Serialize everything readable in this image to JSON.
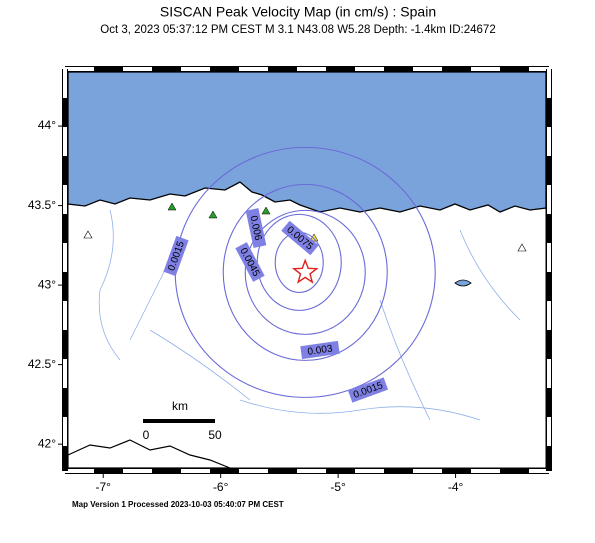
{
  "map": {
    "title": "SISCAN Peak Velocity Map (in cm/s) : Spain",
    "subtitle": "Oct  3, 2023 05:37:12 PM CEST   M 3.1   N43.08 W5.28   Depth: -1.4km   ID:24672",
    "footer": "Map Version 1 Processed 2023-10-03 05:40:07 PM CEST",
    "xlim": [
      -7.3,
      -3.23
    ],
    "ylim": [
      41.85,
      44.34
    ],
    "xticks": [
      {
        "value": -7,
        "label": "-7°"
      },
      {
        "value": -6,
        "label": "-6°"
      },
      {
        "value": -5,
        "label": "-5°"
      },
      {
        "value": -4,
        "label": "-4°"
      }
    ],
    "yticks": [
      {
        "value": 42,
        "label": "42°"
      },
      {
        "value": 42.5,
        "label": "42.5°"
      },
      {
        "value": 43,
        "label": "43°"
      },
      {
        "value": 43.5,
        "label": "43.5°"
      },
      {
        "value": 44,
        "label": "44°"
      }
    ],
    "epicenter": {
      "lat": 43.08,
      "lon": -5.28
    },
    "contours": [
      {
        "level": 0.0015
      },
      {
        "level": 0.003
      },
      {
        "level": 0.0045
      },
      {
        "level": 0.006
      },
      {
        "level": 0.0075
      }
    ],
    "scale_bar": {
      "unit": "km",
      "start": "0",
      "end": "50"
    }
  }
}
